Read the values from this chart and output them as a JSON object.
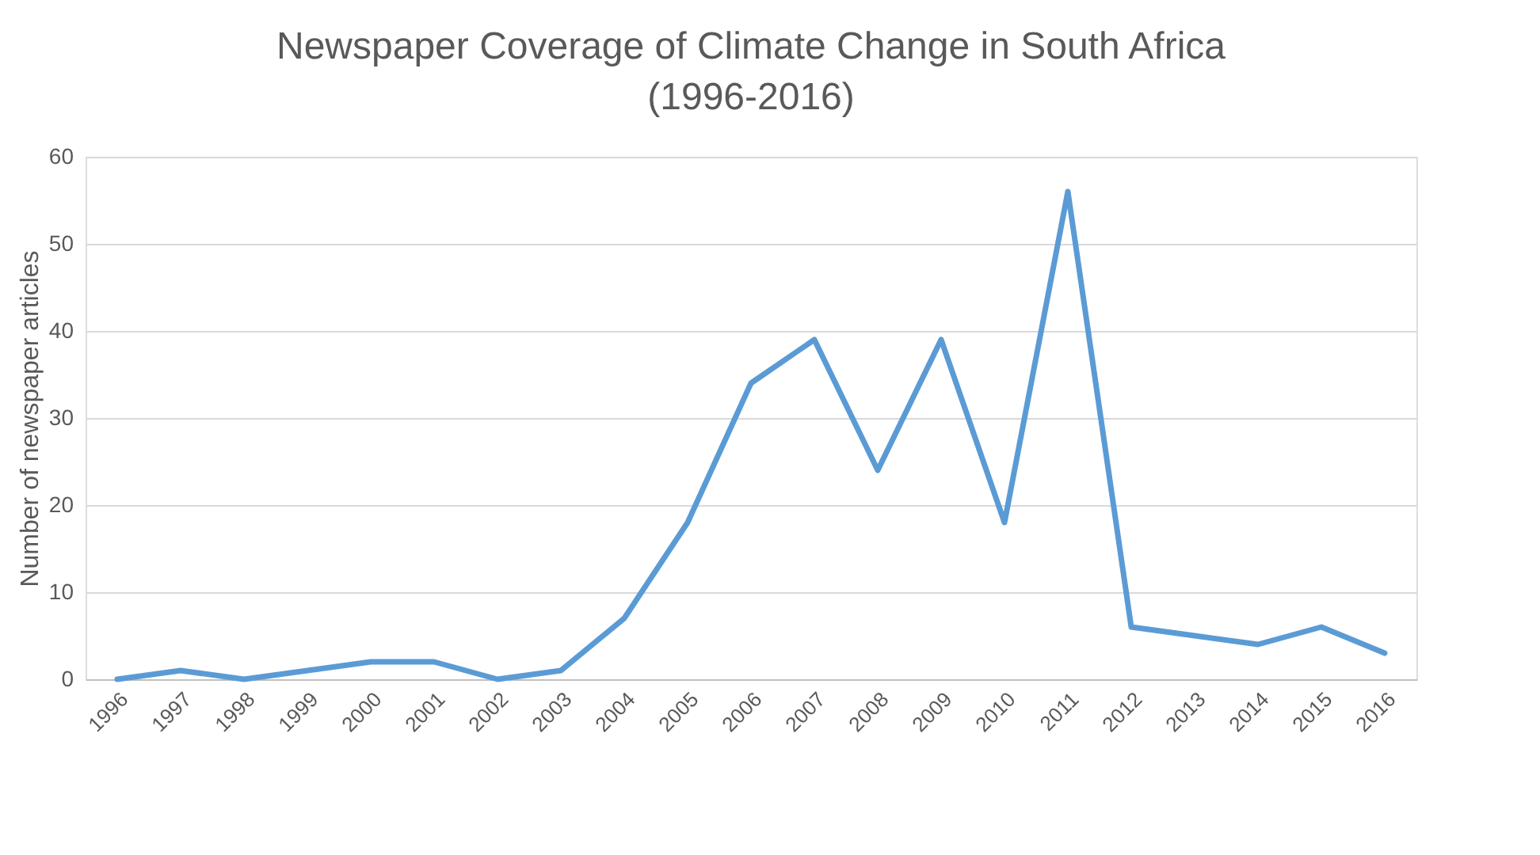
{
  "chart_data": {
    "type": "line",
    "title": "Newspaper Coverage of Climate Change in South Africa\n(1996-2016)",
    "ylabel": "Number of newspaper articles",
    "categories": [
      "1996",
      "1997",
      "1998",
      "1999",
      "2000",
      "2001",
      "2002",
      "2003",
      "2004",
      "2005",
      "2006",
      "2007",
      "2008",
      "2009",
      "2010",
      "2011",
      "2012",
      "2013",
      "2014",
      "2015",
      "2016"
    ],
    "series": [
      {
        "color": "#5b9bd5",
        "values": [
          0,
          1,
          0,
          1,
          2,
          2,
          0,
          1,
          7,
          18,
          34,
          39,
          24,
          39,
          18,
          56,
          6,
          5,
          4,
          6,
          3
        ]
      }
    ],
    "ylim": [
      0,
      60
    ],
    "yticks": [
      0,
      10,
      20,
      30,
      40,
      50,
      60
    ],
    "grid": "y",
    "marker": "none",
    "line_style": "solid"
  }
}
